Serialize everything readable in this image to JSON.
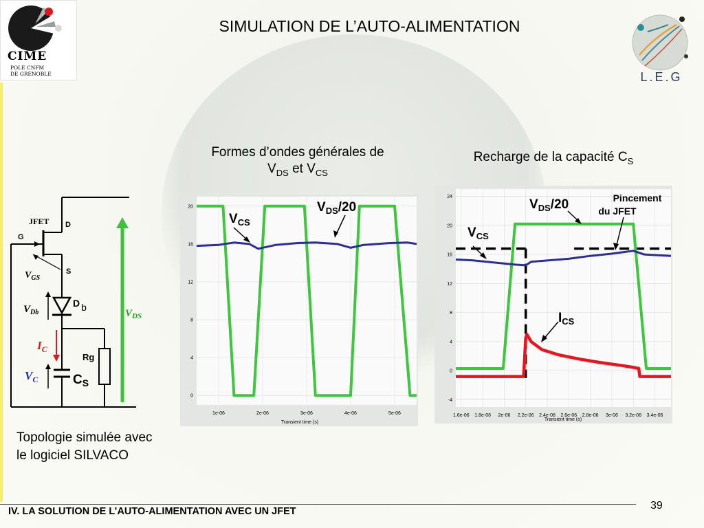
{
  "slide": {
    "title": "SIMULATION DE L’AUTO-ALIMENTATION",
    "footer": "IV. LA SOLUTION DE L’AUTO-ALIMENTATION AVEC UN JFET",
    "page_number": "39"
  },
  "logos": {
    "cime": {
      "name": "CIME",
      "sub_line1": "POLE CNFM",
      "sub_line2": "DE GRENOBLE"
    },
    "leg": {
      "name": "L.E.G"
    }
  },
  "circuit": {
    "jfet": "JFET",
    "d": "D",
    "g": "G",
    "s": "S",
    "vgs_main": "V",
    "vgs_sub": "GS",
    "vdb_main": "V",
    "vdb_sub": "Db",
    "ic_main": "I",
    "ic_sub": "C",
    "vc_main": "V",
    "vc_sub": "C",
    "db_main": "D",
    "db_sub": "b",
    "rg": "Rg",
    "cs_main": "C",
    "cs_sub": "S",
    "vds_main": "V",
    "vds_sub": "DS",
    "caption_line1": "Topologie simulée avec",
    "caption_line2": "le logiciel SILVACO"
  },
  "captions": {
    "left_line1": "Formes d’ondes générales de",
    "left_v1": "V",
    "left_v1_sub": "DS",
    "left_et": " et V",
    "left_v2_sub": "CS",
    "right_main": "Recharge de la capacité C",
    "right_sub": "S"
  },
  "colors": {
    "green": "#3ec63e",
    "blue": "#2b2d9a",
    "red": "#e8141e",
    "arrow_green": "#3fc13f",
    "vdb_red": "#cc2222"
  },
  "chart_data": [
    {
      "type": "line",
      "xlabel": "Transient time (s)",
      "xlim": [
        5e-07,
        5.5e-06
      ],
      "ylim": [
        -1,
        21
      ],
      "xticks": [
        1e-06,
        2e-06,
        3e-06,
        4e-06,
        5e-06
      ],
      "xtick_labels": [
        "1e-06",
        "2e-06",
        "3e-06",
        "4e-06",
        "5e-06"
      ],
      "yticks": [
        0,
        4,
        8,
        12,
        16,
        20
      ],
      "annotations": {
        "vcs_main": "V",
        "vcs_sub": "CS",
        "vds_main": "V",
        "vds_sub": "DS",
        "vds_suffix": "/20"
      },
      "series": [
        {
          "color": "#3ec63e",
          "x": [
            5e-07,
            1.1e-06,
            1.35e-06,
            1.8e-06,
            2.05e-06,
            2.95e-06,
            3.2e-06,
            4e-06,
            4.2e-06,
            5e-06,
            5.35e-06,
            5.5e-06
          ],
          "y": [
            20,
            20,
            0,
            0,
            20,
            20,
            0,
            0,
            20,
            20,
            0,
            0
          ]
        },
        {
          "color": "#2b2d9a",
          "x": [
            5e-07,
            1e-06,
            1.35e-06,
            1.7e-06,
            1.9e-06,
            2.3e-06,
            2.8e-06,
            3.2e-06,
            3.7e-06,
            4e-06,
            4.3e-06,
            4.9e-06,
            5.3e-06,
            5.5e-06
          ],
          "y": [
            15.8,
            15.9,
            16.15,
            16.0,
            15.5,
            15.9,
            16.1,
            16.15,
            16.0,
            15.6,
            15.9,
            16.1,
            16.15,
            16.0
          ]
        }
      ]
    },
    {
      "type": "line",
      "xlabel": "Transient time (s)",
      "xlim": [
        1.55e-06,
        3.55e-06
      ],
      "ylim": [
        -5,
        25
      ],
      "xticks": [
        1.6e-06,
        1.8e-06,
        2e-06,
        2.2e-06,
        2.4e-06,
        2.6e-06,
        2.8e-06,
        3e-06,
        3.2e-06,
        3.4e-06
      ],
      "xtick_labels": [
        "1.6e-06",
        "1.8e-06",
        "2e-06",
        "2.2e-06",
        "2.4e-06",
        "2.6e-06",
        "2.8e-06",
        "3e-06",
        "3.2e-06",
        "3.4e-06"
      ],
      "yticks": [
        -4,
        0,
        4,
        8,
        12,
        16,
        20,
        24
      ],
      "annotations": {
        "vds_main": "V",
        "vds_sub": "DS",
        "vds_suffix": "/20",
        "vcs_main": "V",
        "vcs_sub": "CS",
        "ics_main": "I",
        "ics_sub": "CS",
        "pinch_line1": "Pincement",
        "pinch_line2": "du JFET"
      },
      "threshold": {
        "y": 16.8,
        "gap_x": [
          2.2e-06,
          2.65e-06
        ]
      },
      "marker_x": 2.2e-06,
      "series": [
        {
          "color": "#3ec63e",
          "x": [
            1.55e-06,
            1.99e-06,
            2.1e-06,
            3.2e-06,
            3.32e-06,
            3.55e-06
          ],
          "y": [
            0.3,
            0.3,
            20.2,
            20.2,
            0.3,
            0.3
          ]
        },
        {
          "color": "#2b2d9a",
          "x": [
            1.55e-06,
            1.7e-06,
            1.9e-06,
            2.1e-06,
            2.2e-06,
            2.25e-06,
            2.6e-06,
            2.8e-06,
            3e-06,
            3.1e-06,
            3.2e-06,
            3.3e-06,
            3.55e-06
          ],
          "y": [
            15.3,
            15.2,
            14.9,
            14.6,
            14.5,
            15.0,
            15.4,
            15.8,
            16.1,
            16.3,
            16.5,
            16.0,
            15.8
          ]
        },
        {
          "color": "#e8141e",
          "x": [
            1.55e-06,
            2.18e-06,
            2.2e-06,
            2.21e-06,
            2.25e-06,
            2.35e-06,
            2.5e-06,
            2.7e-06,
            2.9e-06,
            3.1e-06,
            3.22e-06,
            3.25e-06,
            3.26e-06,
            3.55e-06
          ],
          "y": [
            -0.8,
            -0.8,
            4.5,
            5.0,
            4.0,
            2.9,
            2.2,
            1.6,
            1.1,
            0.7,
            0.4,
            0.3,
            -0.8,
            -0.8
          ]
        }
      ]
    }
  ]
}
